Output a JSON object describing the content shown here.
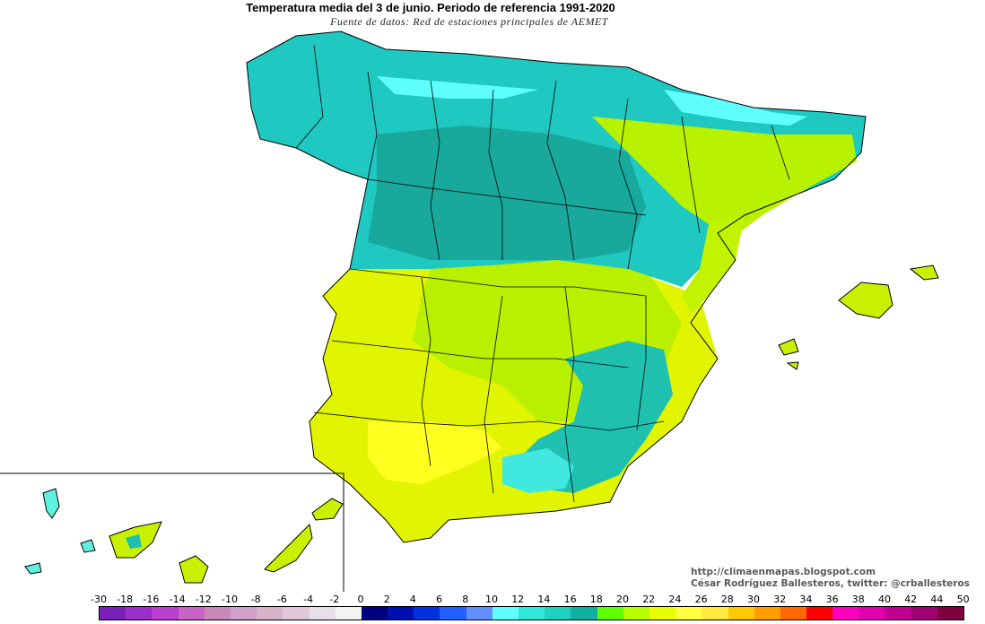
{
  "title": "Temperatura media del 3 de junio. Periodo de referencia 1991-2020",
  "subtitle": "Fuente de datos: Red de estaciones principales de AEMET",
  "credits": {
    "blog": "http://climaenmapas.blogspot.com",
    "author": "César Rodríguez Ballesteros, twitter: @crballesteros"
  },
  "legend": {
    "labels": [
      "-30",
      "-18",
      "-16",
      "-14",
      "-12",
      "-10",
      "-8",
      "-6",
      "-4",
      "-2",
      "0",
      "2",
      "4",
      "6",
      "8",
      "10",
      "12",
      "14",
      "16",
      "18",
      "20",
      "22",
      "24",
      "26",
      "28",
      "30",
      "32",
      "34",
      "36",
      "38",
      "40",
      "42",
      "44",
      "50"
    ],
    "colors": [
      "#7a1fb8",
      "#9b2fc8",
      "#bb3fd0",
      "#c864c8",
      "#c888b8",
      "#d0a0c8",
      "#d8b4c8",
      "#e0c8d8",
      "#e8e0e8",
      "#f4f4f4",
      "#000080",
      "#0010b0",
      "#0030e0",
      "#2060ff",
      "#6090ff",
      "#60ffff",
      "#30e8d8",
      "#20d0c0",
      "#10b0a0",
      "#60ff00",
      "#b8ff00",
      "#e8ff00",
      "#ffff40",
      "#ffe840",
      "#ffc800",
      "#ff9c00",
      "#ff6800",
      "#ff0000",
      "#ff00c0",
      "#e000b0",
      "#c00090",
      "#a00070",
      "#800040"
    ]
  },
  "regions": {
    "spain_north": {
      "temp_band": "14-16",
      "color": "#20c8c0"
    },
    "spain_center": {
      "temp_band": "16-18",
      "color": "#20b0a0"
    },
    "spain_south": {
      "temp_band": "20-24",
      "color": "#e8f800"
    },
    "mountains": {
      "temp_band": "10-12",
      "color": "#60ffff"
    },
    "canarias": {
      "temp_band": "20-22",
      "color": "#c8f000"
    },
    "baleares": {
      "temp_band": "20-22",
      "color": "#c8f000"
    }
  }
}
